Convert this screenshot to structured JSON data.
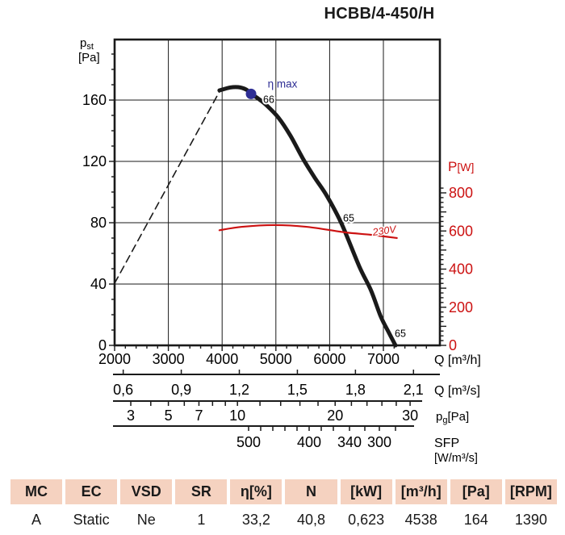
{
  "title": "HCBB/4-450/H",
  "chart_data": {
    "type": "line",
    "title": "HCBB/4-450/H",
    "grid": true,
    "x_axis": {
      "label": "Q [m³/h]",
      "ticks": [
        2000,
        3000,
        4000,
        5000,
        6000,
        7000
      ],
      "range": [
        2000,
        8050
      ],
      "minor_step": 200
    },
    "y_left_axis": {
      "symbol": "p",
      "subscript": "st",
      "unit": "[Pa]",
      "ticks": [
        0,
        40,
        80,
        120,
        160
      ],
      "range": [
        0,
        198
      ],
      "minor_step": 10
    },
    "y_right_axis": {
      "symbol": "P",
      "unit": "[W]",
      "ticks": [
        0,
        200,
        400,
        600,
        800
      ],
      "range": [
        0,
        825
      ],
      "minor_step": 25,
      "color": "#cc1111"
    },
    "q_m3s_axis": {
      "label": "Q [m³/s]",
      "ticks": [
        {
          "v": 0.6,
          "label": "0,6"
        },
        {
          "v": 0.9,
          "label": "0,9"
        },
        {
          "v": 1.2,
          "label": "1,2"
        },
        {
          "v": 1.5,
          "label": "1,5"
        },
        {
          "v": 1.8,
          "label": "1,8"
        },
        {
          "v": 2.1,
          "label": "2,1"
        }
      ]
    },
    "pg_axis": {
      "symbol": "p",
      "subscript": "g",
      "unit": "[Pa]",
      "ticks": [
        3,
        4,
        5,
        6,
        7,
        8,
        9,
        10,
        12,
        14,
        16,
        18,
        20,
        22,
        24,
        26,
        28,
        30
      ],
      "labeled_ticks": [
        3,
        5,
        7,
        10,
        20,
        30
      ]
    },
    "sfp_axis": {
      "label": "SFP",
      "unit": "[W/m³/s]",
      "ticks": [
        {
          "x": 308,
          "label": "500"
        },
        {
          "x": 323
        },
        {
          "x": 338
        },
        {
          "x": 353
        },
        {
          "x": 368
        },
        {
          "x": 383,
          "label": "400"
        },
        {
          "x": 398
        },
        {
          "x": 413
        },
        {
          "x": 433,
          "label": "340"
        },
        {
          "x": 452
        },
        {
          "x": 470,
          "label": "300"
        },
        {
          "x": 490
        }
      ]
    },
    "series": [
      {
        "name": "pressure-curve",
        "style": "solid",
        "color": "#1a1a1a",
        "width": 5,
        "y_axis": "left",
        "points": [
          [
            3950,
            166.3
          ],
          [
            4150,
            168.2
          ],
          [
            4300,
            168.4
          ],
          [
            4450,
            166.8
          ],
          [
            4538,
            164
          ],
          [
            4670,
            161
          ],
          [
            4820,
            156.8
          ],
          [
            5050,
            148.4
          ],
          [
            5270,
            136.8
          ],
          [
            5500,
            122
          ],
          [
            5720,
            109.5
          ],
          [
            5950,
            97.4
          ],
          [
            6220,
            79.5
          ],
          [
            6550,
            51.6
          ],
          [
            6770,
            35.8
          ],
          [
            6950,
            18.9
          ],
          [
            7100,
            8.4
          ],
          [
            7225,
            0
          ]
        ]
      },
      {
        "name": "stall-line",
        "style": "dashed",
        "color": "#1a1a1a",
        "width": 1.6,
        "y_axis": "left",
        "points": [
          [
            2000,
            40.5
          ],
          [
            3950,
            165.5
          ]
        ]
      },
      {
        "name": "power-curve-230v",
        "style": "solid",
        "color": "#cc1111",
        "width": 2.2,
        "y_axis": "right",
        "label": "230V",
        "points": [
          [
            3950,
            604
          ],
          [
            4370,
            622
          ],
          [
            4970,
            631
          ],
          [
            5570,
            622
          ],
          [
            6280,
            593
          ],
          [
            6770,
            580
          ],
          [
            7250,
            563
          ]
        ]
      }
    ],
    "annotations": {
      "eta_max": {
        "label": "η max",
        "q": 4538,
        "pa": 164,
        "color": "#2e2e94"
      },
      "curve_labels": [
        {
          "text": "66",
          "q": 4868,
          "pa": 160.5
        },
        {
          "text": "65",
          "q": 6354,
          "pa": 83.2
        },
        {
          "text": "65",
          "q": 7315,
          "pa": 7.9
        }
      ]
    }
  },
  "table": {
    "header_bg": "#f5d2c0",
    "headers": [
      "MC",
      "EC",
      "VSD",
      "SR",
      "η[%]",
      "N",
      "[kW]",
      "[m³/h]",
      "[Pa]",
      "[RPM]"
    ],
    "values": [
      "A",
      "Static",
      "Ne",
      "1",
      "33,2",
      "40,8",
      "0,623",
      "4538",
      "164",
      "1390"
    ]
  }
}
